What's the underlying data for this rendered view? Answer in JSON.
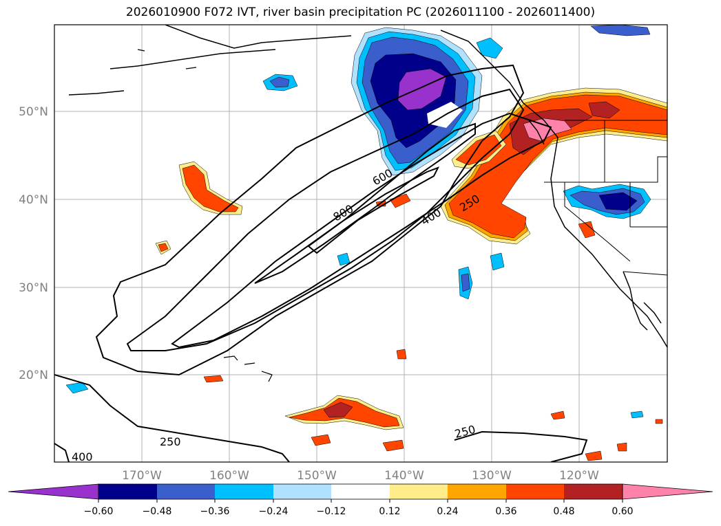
{
  "title": "2026010900 F072 IVT, river basin precipitation PC (2026011100 - 2026011400)",
  "map": {
    "lat_labels": [
      "50°N",
      "40°N",
      "30°N",
      "20°N"
    ],
    "lon_labels": [
      "170°W",
      "160°W",
      "150°W",
      "140°W",
      "130°W",
      "120°W"
    ],
    "contour_labels": [
      "600",
      "800",
      "400",
      "250",
      "250",
      "400",
      "250"
    ]
  },
  "colorbar": {
    "ticks": [
      "−0.60",
      "−0.48",
      "−0.36",
      "−0.24",
      "−0.12",
      "0.12",
      "0.24",
      "0.36",
      "0.48",
      "0.60"
    ],
    "colors": [
      "#9932CC",
      "#00008B",
      "#3A5FCD",
      "#00BFFF",
      "#B0E2FF",
      "#FFFFFF",
      "#FFEC8B",
      "#FFA500",
      "#FF4500",
      "#B22222",
      "#FF82AB"
    ]
  }
}
